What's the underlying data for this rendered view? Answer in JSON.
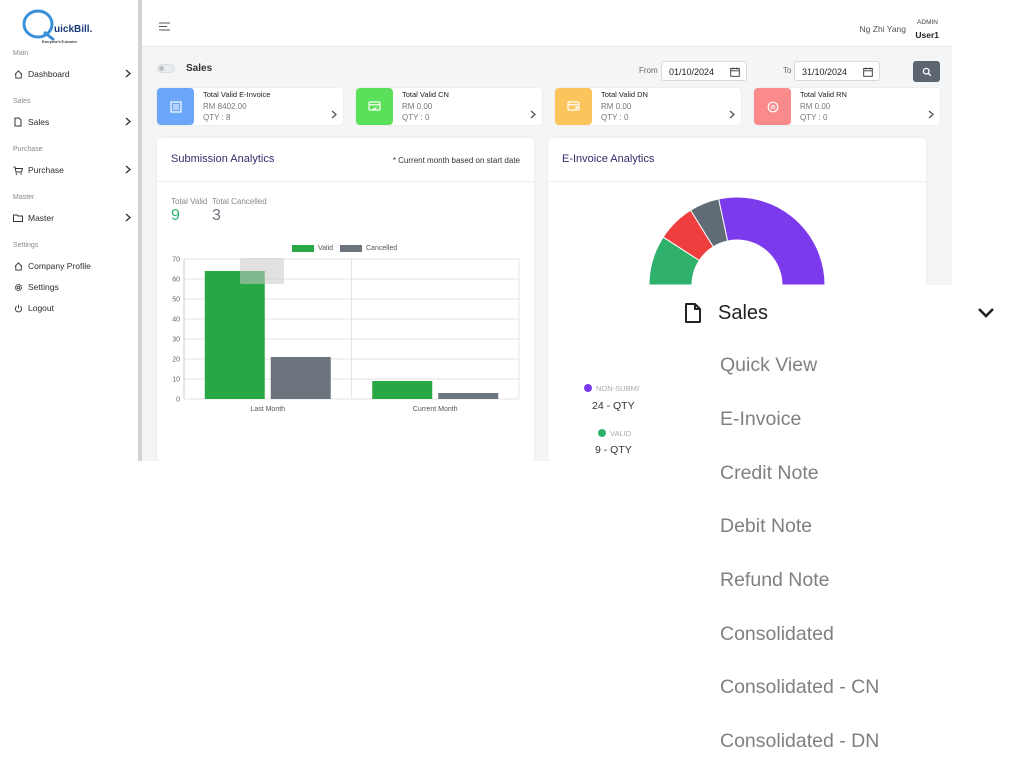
{
  "brand": {
    "logo_text": "uickBill.",
    "logo_mark": "Q",
    "tagline": "Everyone's E-Invoice"
  },
  "sidebar": {
    "sections": [
      {
        "label": "Main"
      },
      {
        "label": "Sales"
      },
      {
        "label": "Purchase"
      },
      {
        "label": "Master"
      },
      {
        "label": "Settings"
      }
    ],
    "items": [
      {
        "label": "Dashboard",
        "icon": "home-icon"
      },
      {
        "label": "Sales",
        "icon": "file-icon"
      },
      {
        "label": "Purchase",
        "icon": "cart-icon"
      },
      {
        "label": "Master",
        "icon": "folder-icon"
      },
      {
        "label": "Company Profile",
        "icon": "home-icon"
      },
      {
        "label": "Settings",
        "icon": "gear-icon"
      },
      {
        "label": "Logout",
        "icon": "power-icon"
      }
    ]
  },
  "header": {
    "user_name": "Ng Zhi Yang",
    "role": "ADMIN",
    "user_id": "User1"
  },
  "filters": {
    "toggle_label": "Sales",
    "from_label": "From",
    "from_value": "01/10/2024",
    "to_label": "To",
    "to_value": "31/10/2024"
  },
  "cards": [
    {
      "title": "Total Valid E-Invoice",
      "amount": "RM 8402.00",
      "qty": "QTY : 8",
      "color": "#6aa7f8"
    },
    {
      "title": "Total Valid CN",
      "amount": "RM 0.00",
      "qty": "QTY : 0",
      "color": "#5ae05a"
    },
    {
      "title": "Total Valid DN",
      "amount": "RM 0.00",
      "qty": "QTY : 0",
      "color": "#fcc45c"
    },
    {
      "title": "Total Valid RN",
      "amount": "RM 0.00",
      "qty": "QTY : 0",
      "color": "#fb8b8b"
    }
  ],
  "submission": {
    "title": "Submission Analytics",
    "note": "* Current month based on start date",
    "total_valid_label": "Total Valid",
    "total_valid_value": "9",
    "total_cancelled_label": "Total Cancelled",
    "total_cancelled_value": "3"
  },
  "chart_data": {
    "type": "bar",
    "categories": [
      "Last Month",
      "Current Month"
    ],
    "series": [
      {
        "name": "Valid",
        "values": [
          64,
          9
        ],
        "color": "#28a745"
      },
      {
        "name": "Cancelled",
        "values": [
          21,
          3
        ],
        "color": "#6c757d"
      }
    ],
    "ylim": [
      0,
      70
    ],
    "yticks": [
      0,
      10,
      20,
      30,
      40,
      50,
      60,
      70
    ],
    "grid": true,
    "legend": "top"
  },
  "einvoice": {
    "title": "E-Invoice Analytics",
    "legend": [
      {
        "label": "NON-SUBMIT",
        "value": "24 - QTY",
        "color": "#7c3aed"
      },
      {
        "label": "VALID",
        "value": "9 - QTY",
        "color": "#2fb06b"
      }
    ],
    "donut": [
      {
        "name": "green",
        "value": 5.5,
        "color": "#2fb06b"
      },
      {
        "name": "red",
        "value": 4.2,
        "color": "#ef3e3e"
      },
      {
        "name": "gray",
        "value": 3.3,
        "color": "#5f6b75"
      },
      {
        "name": "purple",
        "value": 17,
        "color": "#7c3aed"
      }
    ]
  },
  "dropdown": {
    "header": "Sales",
    "items": [
      "Quick View",
      "E-Invoice",
      "Credit Note",
      "Debit Note",
      "Refund Note",
      "Consolidated",
      "Consolidated - CN",
      "Consolidated - DN"
    ]
  }
}
